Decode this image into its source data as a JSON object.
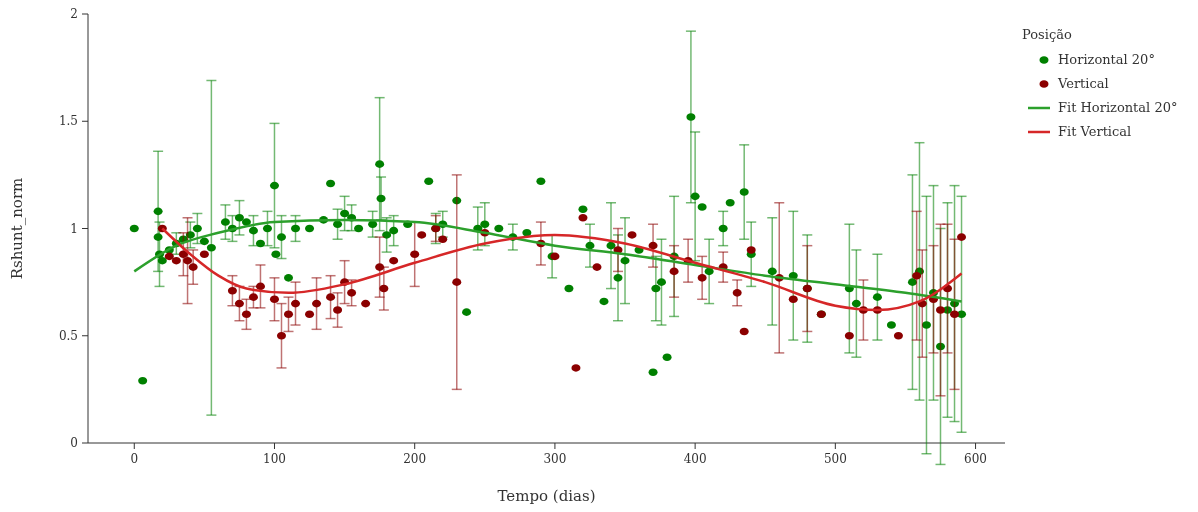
{
  "chart_data": {
    "type": "scatter",
    "xlabel": "Tempo (dias)",
    "ylabel": "Rshunt_norm",
    "legend_title": "Posição",
    "xlim": [
      -33,
      621
    ],
    "ylim": [
      0,
      2
    ],
    "xticks": [
      0,
      100,
      200,
      300,
      400,
      500,
      600
    ],
    "yticks": [
      0,
      0.5,
      1,
      1.5,
      2
    ],
    "grid": false,
    "legend": "right",
    "series": [
      {
        "name": "Horizontal 20°",
        "marker": "circle",
        "color": "#008000",
        "x": [
          0,
          6,
          17,
          17,
          18,
          20,
          25,
          30,
          35,
          40,
          45,
          50,
          55,
          65,
          70,
          75,
          80,
          85,
          90,
          95,
          100,
          101,
          105,
          110,
          115,
          125,
          135,
          140,
          145,
          150,
          155,
          160,
          170,
          175,
          176,
          180,
          185,
          195,
          210,
          215,
          220,
          230,
          237,
          245,
          250,
          260,
          270,
          280,
          290,
          298,
          310,
          320,
          325,
          335,
          340,
          345,
          350,
          360,
          370,
          372,
          376,
          380,
          385,
          397,
          400,
          405,
          410,
          420,
          425,
          435,
          440,
          455,
          470,
          480,
          490,
          510,
          515,
          530,
          540,
          555,
          560,
          565,
          570,
          575,
          580,
          585,
          590
        ],
        "values": [
          1.0,
          0.29,
          1.08,
          0.96,
          0.88,
          0.85,
          0.9,
          0.93,
          0.95,
          0.97,
          1.0,
          0.94,
          0.91,
          1.03,
          1.0,
          1.05,
          1.03,
          0.99,
          0.93,
          1.0,
          1.2,
          0.88,
          0.96,
          0.77,
          1.0,
          1.0,
          1.04,
          1.21,
          1.02,
          1.07,
          1.05,
          1.0,
          1.02,
          1.3,
          1.14,
          0.97,
          0.99,
          1.02,
          1.22,
          1.0,
          1.02,
          1.13,
          0.61,
          1.0,
          1.02,
          1.0,
          0.96,
          0.98,
          1.22,
          0.87,
          0.72,
          1.09,
          0.92,
          0.66,
          0.92,
          0.77,
          0.85,
          0.9,
          0.33,
          0.72,
          0.75,
          0.4,
          0.87,
          1.52,
          1.15,
          1.1,
          0.8,
          1.0,
          1.12,
          1.17,
          0.88,
          0.8,
          0.78,
          0.72,
          0.6,
          0.72,
          0.65,
          0.68,
          0.55,
          0.75,
          0.8,
          0.55,
          0.7,
          0.45,
          0.62,
          0.65,
          0.6
        ],
        "errors": [
          null,
          null,
          0.28,
          null,
          0.15,
          null,
          null,
          0.05,
          null,
          0.06,
          0.07,
          null,
          0.78,
          0.08,
          0.06,
          0.08,
          null,
          0.07,
          null,
          0.08,
          0.29,
          null,
          0.1,
          null,
          0.06,
          null,
          null,
          null,
          0.07,
          0.08,
          0.06,
          null,
          0.06,
          0.31,
          0.1,
          0.08,
          0.07,
          null,
          null,
          0.07,
          0.06,
          null,
          null,
          0.1,
          0.1,
          null,
          0.06,
          null,
          null,
          0.1,
          null,
          null,
          0.1,
          null,
          0.2,
          0.2,
          0.2,
          null,
          null,
          0.15,
          0.2,
          null,
          0.28,
          0.4,
          0.3,
          null,
          0.15,
          0.08,
          null,
          0.22,
          0.15,
          0.25,
          0.3,
          0.25,
          null,
          0.3,
          0.25,
          0.2,
          null,
          0.5,
          0.6,
          0.6,
          0.5,
          0.55,
          0.5,
          0.55,
          0.55
        ]
      },
      {
        "name": "Vertical",
        "marker": "circle",
        "color": "#8b0000",
        "x": [
          20,
          25,
          30,
          35,
          38,
          42,
          50,
          70,
          75,
          80,
          85,
          90,
          100,
          105,
          110,
          115,
          125,
          130,
          140,
          145,
          150,
          155,
          165,
          175,
          178,
          185,
          200,
          205,
          215,
          220,
          230,
          250,
          290,
          300,
          315,
          320,
          330,
          345,
          355,
          370,
          385,
          395,
          405,
          420,
          430,
          435,
          440,
          460,
          470,
          480,
          490,
          510,
          520,
          530,
          545,
          558,
          562,
          570,
          575,
          580,
          585,
          590
        ],
        "values": [
          1.0,
          0.87,
          0.85,
          0.88,
          0.85,
          0.82,
          0.88,
          0.71,
          0.65,
          0.6,
          0.68,
          0.73,
          0.67,
          0.5,
          0.6,
          0.65,
          0.6,
          0.65,
          0.68,
          0.62,
          0.75,
          0.7,
          0.65,
          0.82,
          0.72,
          0.85,
          0.88,
          0.97,
          1.0,
          0.95,
          0.75,
          0.98,
          0.93,
          0.87,
          0.35,
          1.05,
          0.82,
          0.9,
          0.97,
          0.92,
          0.8,
          0.85,
          0.77,
          0.82,
          0.7,
          0.52,
          0.9,
          0.77,
          0.67,
          0.72,
          0.6,
          0.5,
          0.62,
          0.62,
          0.5,
          0.78,
          0.65,
          0.67,
          0.62,
          0.72,
          0.6,
          0.96
        ],
        "errors": [
          null,
          null,
          null,
          0.1,
          0.2,
          0.08,
          null,
          0.07,
          0.08,
          0.07,
          0.05,
          0.1,
          0.1,
          0.15,
          0.08,
          0.1,
          null,
          0.12,
          0.1,
          0.08,
          0.1,
          0.06,
          null,
          0.14,
          0.1,
          null,
          0.15,
          null,
          0.06,
          null,
          0.5,
          null,
          0.1,
          null,
          null,
          null,
          null,
          0.1,
          null,
          0.1,
          0.12,
          0.1,
          0.1,
          0.07,
          0.06,
          null,
          null,
          0.35,
          null,
          0.2,
          null,
          null,
          0.14,
          null,
          null,
          0.3,
          0.25,
          0.25,
          0.4,
          0.3,
          0.35,
          null
        ]
      },
      {
        "name": "Fit Horizontal 20°",
        "type": "line",
        "marker": "none",
        "color": "#2ca02c",
        "x": [
          0,
          30,
          60,
          100,
          150,
          200,
          250,
          300,
          350,
          400,
          450,
          500,
          550,
          590
        ],
        "values": [
          0.8,
          0.92,
          0.98,
          1.03,
          1.04,
          1.03,
          0.98,
          0.92,
          0.88,
          0.83,
          0.78,
          0.74,
          0.7,
          0.66
        ]
      },
      {
        "name": "Fit Vertical",
        "type": "line",
        "marker": "none",
        "color": "#d62728",
        "x": [
          20,
          40,
          60,
          80,
          110,
          150,
          200,
          250,
          300,
          350,
          400,
          450,
          500,
          530,
          560,
          590
        ],
        "values": [
          1.0,
          0.88,
          0.78,
          0.72,
          0.7,
          0.74,
          0.84,
          0.93,
          0.97,
          0.93,
          0.84,
          0.75,
          0.64,
          0.62,
          0.66,
          0.79
        ]
      }
    ]
  }
}
